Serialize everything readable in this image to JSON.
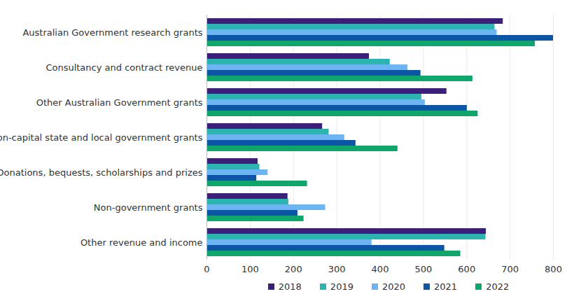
{
  "chart_data": {
    "type": "bar",
    "orientation": "horizontal",
    "grid": true,
    "legend": "bottom",
    "categories": [
      "Australian Government research grants",
      "Consultancy and contract revenue",
      "Other Australian Government grants",
      "Non-capital state and local government grants",
      "Donations, bequests, scholarships and prizes",
      "Non-government grants",
      "Other revenue and income"
    ],
    "series": [
      {
        "name": "2018",
        "color": "#3b1f78",
        "values": [
          684,
          375,
          554,
          267,
          118,
          187,
          645
        ]
      },
      {
        "name": "2019",
        "color": "#2cb5b0",
        "values": [
          665,
          423,
          496,
          282,
          122,
          189,
          644
        ]
      },
      {
        "name": "2020",
        "color": "#6cb4f2",
        "values": [
          670,
          464,
          504,
          318,
          141,
          274,
          381
        ]
      },
      {
        "name": "2021",
        "color": "#0d56a6",
        "values": [
          800,
          494,
          601,
          344,
          115,
          210,
          549
        ]
      },
      {
        "name": "2022",
        "color": "#10a66b",
        "values": [
          758,
          614,
          626,
          441,
          232,
          224,
          586
        ]
      }
    ],
    "xlim": [
      0,
      800
    ],
    "xticks": [
      0,
      100,
      200,
      300,
      400,
      500,
      600,
      700,
      800
    ]
  }
}
